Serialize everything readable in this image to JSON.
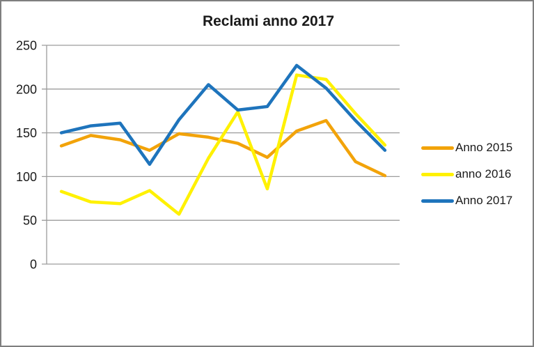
{
  "title": "Reclami anno 2017",
  "style": {
    "background": "#ffffff",
    "border_color": "#7f7f7f",
    "grid_color": "#9c9c9c",
    "axis_color": "#9c9c9c",
    "text_color": "#1a1a1a",
    "series_colors": {
      "anno_2015": "#f2a30a",
      "anno_2016": "#fff100",
      "anno_2017": "#1e74bc"
    }
  },
  "legend": {
    "position": "right",
    "items": [
      {
        "label": "Anno 2015",
        "color": "#f2a30a"
      },
      {
        "label": "anno 2016",
        "color": "#fff100"
      },
      {
        "label": "Anno 2017",
        "color": "#1e74bc"
      }
    ]
  },
  "chart_data": {
    "type": "line",
    "title": "Reclami anno 2017",
    "x": [
      1,
      2,
      3,
      4,
      5,
      6,
      7,
      8,
      9,
      10,
      11,
      12
    ],
    "x_axis_labels_visible": false,
    "xlabel": "",
    "ylabel": "",
    "ylim": [
      0,
      250
    ],
    "yticks": [
      0,
      50,
      100,
      150,
      200,
      250
    ],
    "grid": true,
    "legend_position": "right",
    "series": [
      {
        "name": "Anno 2015",
        "color": "#f2a30a",
        "values": [
          135,
          147,
          142,
          130,
          149,
          145,
          138,
          122,
          152,
          164,
          117,
          101
        ]
      },
      {
        "name": "anno 2016",
        "color": "#fff100",
        "values": [
          83,
          71,
          69,
          84,
          57,
          121,
          174,
          86,
          216,
          211,
          172,
          136
        ]
      },
      {
        "name": "Anno 2017",
        "color": "#1e74bc",
        "values": [
          150,
          158,
          161,
          114,
          165,
          205,
          176,
          180,
          227,
          201,
          164,
          130
        ]
      }
    ]
  }
}
